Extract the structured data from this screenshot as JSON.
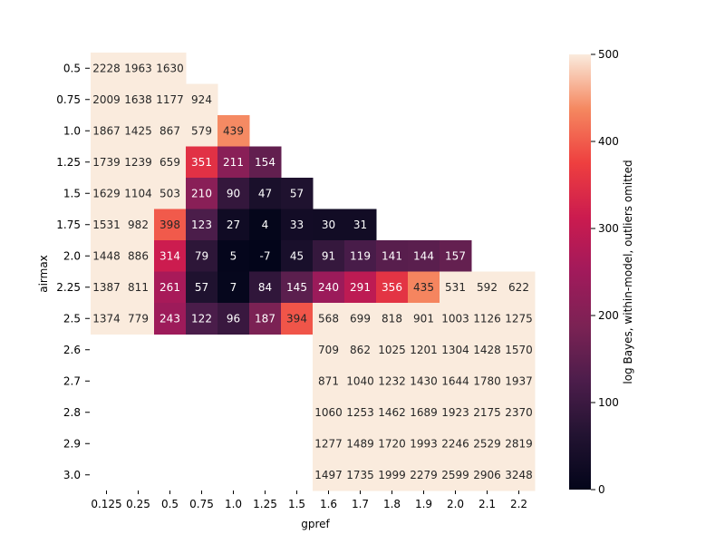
{
  "chart_data": {
    "type": "heatmap",
    "xlabel": "gpref",
    "ylabel": "airmax",
    "x_categories": [
      "0.125",
      "0.25",
      "0.5",
      "0.75",
      "1.0",
      "1.25",
      "1.5",
      "1.6",
      "1.7",
      "1.8",
      "1.9",
      "2.0",
      "2.1",
      "2.2"
    ],
    "y_categories": [
      "0.5",
      "0.75",
      "1.0",
      "1.25",
      "1.5",
      "1.75",
      "2.0",
      "2.25",
      "2.5",
      "2.6",
      "2.7",
      "2.8",
      "2.9",
      "3.0"
    ],
    "values": [
      [
        2228,
        1963,
        1630,
        null,
        null,
        null,
        null,
        null,
        null,
        null,
        null,
        null,
        null,
        null
      ],
      [
        2009,
        1638,
        1177,
        924,
        null,
        null,
        null,
        null,
        null,
        null,
        null,
        null,
        null,
        null
      ],
      [
        1867,
        1425,
        867,
        579,
        439,
        null,
        null,
        null,
        null,
        null,
        null,
        null,
        null,
        null
      ],
      [
        1739,
        1239,
        659,
        351,
        211,
        154,
        null,
        null,
        null,
        null,
        null,
        null,
        null,
        null
      ],
      [
        1629,
        1104,
        503,
        210,
        90,
        47,
        57,
        null,
        null,
        null,
        null,
        null,
        null,
        null
      ],
      [
        1531,
        982,
        398,
        123,
        27,
        4,
        33,
        30,
        31,
        null,
        null,
        null,
        null,
        null
      ],
      [
        1448,
        886,
        314,
        79,
        5,
        -7,
        45,
        91,
        119,
        141,
        144,
        157,
        null,
        null
      ],
      [
        1387,
        811,
        261,
        57,
        7,
        84,
        145,
        240,
        291,
        356,
        435,
        531,
        592,
        622
      ],
      [
        1374,
        779,
        243,
        122,
        96,
        187,
        394,
        568,
        699,
        818,
        901,
        1003,
        1126,
        1275
      ],
      [
        null,
        null,
        null,
        null,
        null,
        null,
        null,
        709,
        862,
        1025,
        1201,
        1304,
        1428,
        1570
      ],
      [
        null,
        null,
        null,
        null,
        null,
        null,
        null,
        871,
        1040,
        1232,
        1430,
        1644,
        1780,
        1937
      ],
      [
        null,
        null,
        null,
        null,
        null,
        null,
        null,
        1060,
        1253,
        1462,
        1689,
        1923,
        2175,
        2370
      ],
      [
        null,
        null,
        null,
        null,
        null,
        null,
        null,
        1277,
        1489,
        1720,
        1993,
        2246,
        2529,
        2819
      ],
      [
        null,
        null,
        null,
        null,
        null,
        null,
        null,
        1497,
        1735,
        1999,
        2279,
        2599,
        2906,
        3248
      ]
    ],
    "colorbar": {
      "label": "log Bayes, within-model, outliers omitted",
      "vmin": 0,
      "vmax": 500,
      "ticks": [
        0,
        100,
        200,
        300,
        400,
        500
      ],
      "colormap": "rocket"
    }
  }
}
